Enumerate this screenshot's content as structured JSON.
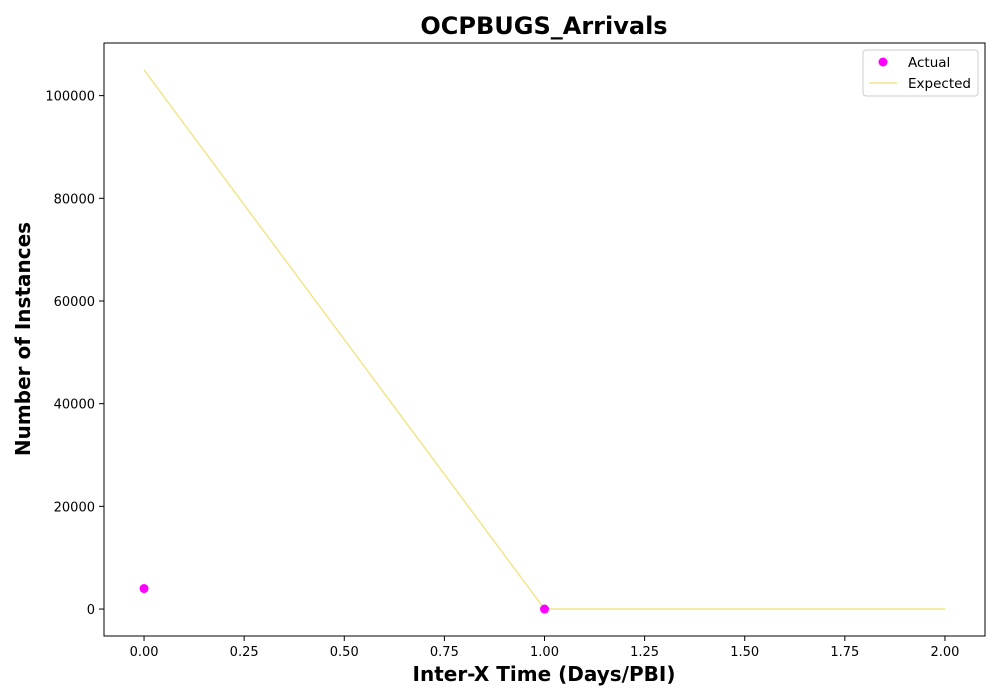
{
  "chart_data": {
    "type": "scatter",
    "title": "OCPBUGS_Arrivals",
    "xlabel": "Inter-X Time (Days/PBI)",
    "ylabel": "Number of Instances",
    "xlim": [
      -0.1,
      2.1
    ],
    "ylim": [
      -5250,
      110250
    ],
    "xticks": [
      0.0,
      0.25,
      0.5,
      0.75,
      1.0,
      1.25,
      1.5,
      1.75,
      2.0
    ],
    "xtick_labels": [
      "0.00",
      "0.25",
      "0.50",
      "0.75",
      "1.00",
      "1.25",
      "1.50",
      "1.75",
      "2.00"
    ],
    "yticks": [
      0,
      20000,
      40000,
      60000,
      80000,
      100000
    ],
    "ytick_labels": [
      "0",
      "20000",
      "40000",
      "60000",
      "80000",
      "100000"
    ],
    "grid": false,
    "legend_position": "top-right",
    "series": [
      {
        "name": "Actual",
        "kind": "scatter",
        "color": "#ff00ff",
        "x": [
          0,
          1
        ],
        "y": [
          4000,
          0
        ]
      },
      {
        "name": "Expected",
        "kind": "line",
        "color": "#f0e68c",
        "x": [
          0,
          1,
          2
        ],
        "y": [
          105000,
          0,
          0
        ]
      }
    ]
  }
}
